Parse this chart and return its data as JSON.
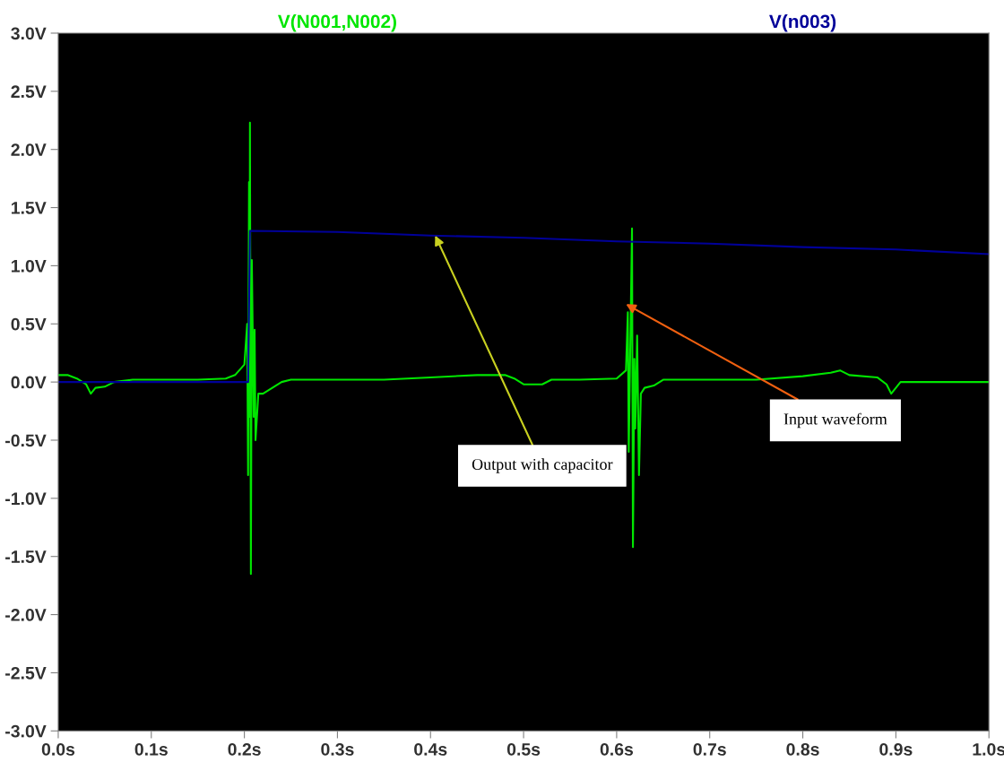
{
  "chart_data": {
    "type": "line",
    "xlim": [
      0,
      1.0
    ],
    "ylim": [
      -3.0,
      3.0
    ],
    "xticks": [
      {
        "value": 0,
        "label": "0.0s"
      },
      {
        "value": 0.1,
        "label": "0.1s"
      },
      {
        "value": 0.2,
        "label": "0.2s"
      },
      {
        "value": 0.3,
        "label": "0.3s"
      },
      {
        "value": 0.4,
        "label": "0.4s"
      },
      {
        "value": 0.5,
        "label": "0.5s"
      },
      {
        "value": 0.6,
        "label": "0.6s"
      },
      {
        "value": 0.7,
        "label": "0.7s"
      },
      {
        "value": 0.8,
        "label": "0.8s"
      },
      {
        "value": 0.9,
        "label": "0.9s"
      },
      {
        "value": 1.0,
        "label": "1.0s"
      }
    ],
    "yticks": [
      {
        "value": -3.0,
        "label": "-3.0V"
      },
      {
        "value": -2.5,
        "label": "-2.5V"
      },
      {
        "value": -2.0,
        "label": "-2.0V"
      },
      {
        "value": -1.5,
        "label": "-1.5V"
      },
      {
        "value": -1.0,
        "label": "-1.0V"
      },
      {
        "value": -0.5,
        "label": "-0.5V"
      },
      {
        "value": 0,
        "label": "0.0V"
      },
      {
        "value": 0.5,
        "label": "0.5V"
      },
      {
        "value": 1.0,
        "label": "1.0V"
      },
      {
        "value": 1.5,
        "label": "1.5V"
      },
      {
        "value": 2.0,
        "label": "2.0V"
      },
      {
        "value": 2.5,
        "label": "2.5V"
      },
      {
        "value": 3.0,
        "label": "3.0V"
      }
    ],
    "grid": false,
    "legend": "top",
    "marker": "none",
    "line_style": "solid",
    "series": [
      {
        "name": "V(N001,N002)",
        "color": "#00e600",
        "x": [
          0,
          0.01,
          0.02,
          0.03,
          0.035,
          0.04,
          0.05,
          0.06,
          0.08,
          0.1,
          0.15,
          0.18,
          0.19,
          0.2,
          0.203,
          0.204,
          0.205,
          0.2055,
          0.206,
          0.207,
          0.208,
          0.209,
          0.21,
          0.211,
          0.212,
          0.215,
          0.22,
          0.23,
          0.24,
          0.25,
          0.3,
          0.35,
          0.4,
          0.45,
          0.48,
          0.49,
          0.5,
          0.52,
          0.53,
          0.56,
          0.6,
          0.61,
          0.612,
          0.613,
          0.6165,
          0.6175,
          0.619,
          0.62,
          0.622,
          0.624,
          0.626,
          0.63,
          0.64,
          0.65,
          0.7,
          0.75,
          0.8,
          0.83,
          0.84,
          0.85,
          0.88,
          0.89,
          0.895,
          0.9,
          0.905,
          1.0
        ],
        "values": [
          0.06,
          0.06,
          0.03,
          -0.02,
          -0.1,
          -0.05,
          -0.04,
          0.0,
          0.02,
          0.02,
          0.02,
          0.03,
          0.06,
          0.15,
          0.5,
          -0.8,
          1.72,
          -0.3,
          2.23,
          -1.65,
          1.05,
          0.4,
          -0.3,
          0.45,
          -0.5,
          -0.1,
          -0.1,
          -0.05,
          0.0,
          0.02,
          0.02,
          0.02,
          0.04,
          0.06,
          0.06,
          0.03,
          -0.02,
          -0.02,
          0.02,
          0.02,
          0.03,
          0.1,
          0.6,
          -0.6,
          1.32,
          -1.42,
          0.2,
          -0.4,
          0.4,
          -0.8,
          -0.1,
          -0.05,
          -0.03,
          0.02,
          0.02,
          0.02,
          0.05,
          0.08,
          0.1,
          0.06,
          0.04,
          -0.02,
          -0.1,
          -0.05,
          0.0,
          0.0
        ]
      },
      {
        "name": "V(n003)",
        "color": "#000099",
        "x": [
          0,
          0.1,
          0.2,
          0.204,
          0.206,
          0.3,
          0.4,
          0.5,
          0.6,
          0.7,
          0.8,
          0.9,
          1.0
        ],
        "values": [
          0,
          0,
          0,
          0,
          1.3,
          1.29,
          1.26,
          1.24,
          1.21,
          1.19,
          1.16,
          1.14,
          1.1
        ]
      }
    ],
    "annotations": [
      {
        "text": "Output with capacitor",
        "x": 0.405,
        "y": 1.26
      },
      {
        "text": "Input waveform",
        "x": 0.61,
        "y": 0.67
      }
    ]
  }
}
